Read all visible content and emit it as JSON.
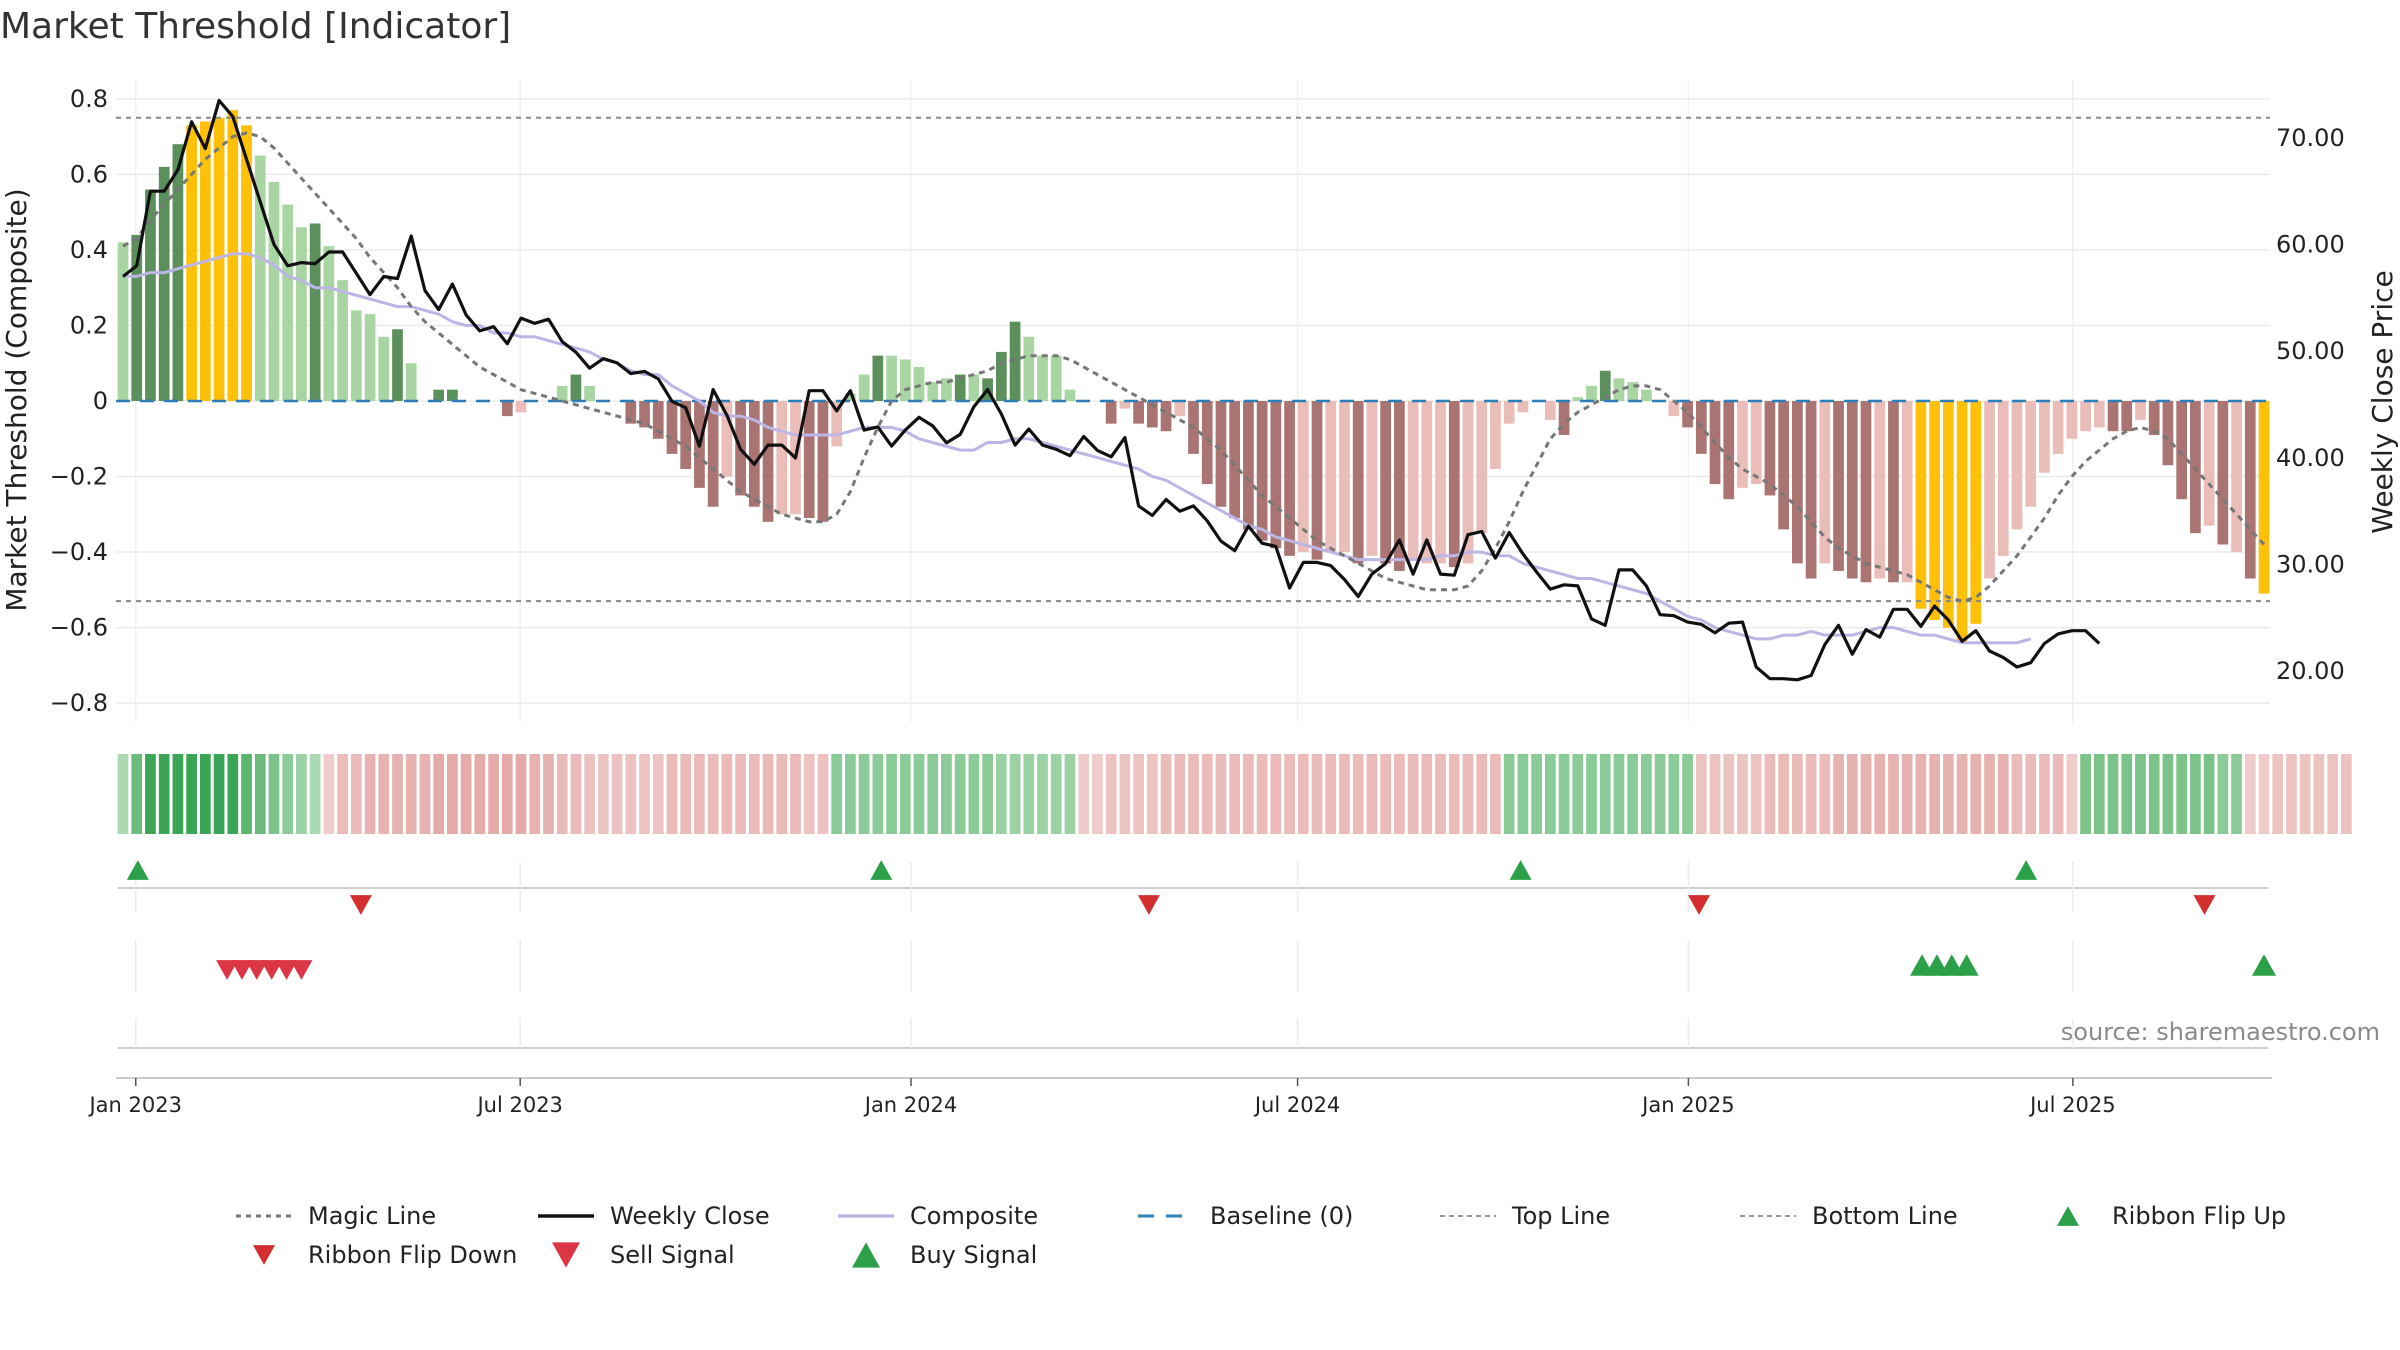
{
  "page": {
    "title": "Market Threshold [Indicator]"
  },
  "chart_data": {
    "type": "bar",
    "title": "Market Threshold [Indicator]",
    "source": "source: sharemaestro.com",
    "ylabel_left": "Market Threshold (Composite)",
    "ylabel_right": "Weekly Close Price",
    "x_start": "2022-12-26",
    "x_end": "2025-09-29",
    "x_tick_labels": [
      "Jan 2023",
      "Jul 2023",
      "Jan 2024",
      "Jul 2024",
      "Jan 2025",
      "Jul 2025"
    ],
    "x_tick_dates": [
      "2023-01-01",
      "2023-07-01",
      "2024-01-01",
      "2024-07-01",
      "2025-01-01",
      "2025-07-01"
    ],
    "ylim_left": [
      -0.85,
      0.85
    ],
    "yticks_left": [
      0.8,
      0.6,
      0.4,
      0.2,
      0,
      -0.2,
      -0.4,
      -0.6,
      -0.8
    ],
    "ytick_labels_left": [
      "0.8",
      "0.6",
      "0.4",
      "0.2",
      "0",
      "−0.2",
      "−0.4",
      "−0.6",
      "−0.8"
    ],
    "ylim_right": [
      15.24,
      75.42
    ],
    "yticks_right": [
      70,
      60,
      50,
      40,
      30,
      20
    ],
    "ytick_labels_right": [
      "70.00",
      "60.00",
      "50.00",
      "40.00",
      "30.00",
      "20.00"
    ],
    "top_line": 0.75,
    "bottom_line": -0.53,
    "baseline": 0,
    "colors": {
      "strong_green": "#5b8f5b",
      "light_green": "#a8d5a2",
      "strong_red": "#a97472",
      "light_red": "#ebbdb9",
      "extreme": "#ffc107",
      "magic": "#777777",
      "close": "#111111",
      "composite": "#bdb5e6",
      "baseline": "#2c7fb8",
      "buy": "#2ca048",
      "sell": "#dc3545",
      "flip_down": "#d32f2f"
    },
    "series": [
      {
        "name": "Composite",
        "bar_values": [
          0.42,
          0.44,
          0.56,
          0.62,
          0.68,
          0.73,
          0.74,
          0.75,
          0.77,
          0.73,
          0.65,
          0.58,
          0.52,
          0.46,
          0.47,
          0.41,
          0.32,
          0.24,
          0.23,
          0.17,
          0.19,
          0.1,
          0.0,
          0.03,
          0.03,
          0.0,
          0.0,
          0.0,
          -0.04,
          -0.03,
          0.0,
          0.0,
          0.04,
          0.07,
          0.04,
          0.0,
          0.0,
          -0.06,
          -0.07,
          -0.1,
          -0.14,
          -0.18,
          -0.23,
          -0.28,
          -0.2,
          -0.25,
          -0.28,
          -0.32,
          -0.3,
          -0.3,
          -0.31,
          -0.32,
          -0.12,
          0.02,
          0.07,
          0.12,
          0.12,
          0.11,
          0.09,
          0.05,
          0.06,
          0.07,
          0.07,
          0.06,
          0.13,
          0.21,
          0.17,
          0.12,
          0.12,
          0.03,
          0.0,
          0.0,
          -0.06,
          -0.02,
          -0.06,
          -0.07,
          -0.08,
          -0.04,
          -0.14,
          -0.22,
          -0.28,
          -0.31,
          -0.34,
          -0.37,
          -0.39,
          -0.41,
          -0.4,
          -0.42,
          -0.4,
          -0.4,
          -0.43,
          -0.41,
          -0.43,
          -0.45,
          -0.42,
          -0.43,
          -0.43,
          -0.44,
          -0.43,
          -0.35,
          -0.18,
          -0.06,
          -0.03,
          0.0,
          -0.05,
          -0.09,
          0.01,
          0.04,
          0.08,
          0.06,
          0.05,
          0.03,
          0.0,
          -0.04,
          -0.07,
          -0.14,
          -0.22,
          -0.26,
          -0.23,
          -0.22,
          -0.25,
          -0.34,
          -0.43,
          -0.47,
          -0.43,
          -0.45,
          -0.47,
          -0.48,
          -0.47,
          -0.48,
          -0.48,
          -0.55,
          -0.58,
          -0.6,
          -0.64,
          -0.59,
          -0.47,
          -0.41,
          -0.34,
          -0.28,
          -0.19,
          -0.14,
          -0.1,
          -0.08,
          -0.07,
          -0.08,
          -0.08,
          -0.05,
          -0.09,
          -0.17,
          -0.26,
          -0.35,
          -0.33,
          -0.38,
          -0.4,
          -0.47,
          -0.51
        ],
        "bar_class": [
          "lg",
          "sg",
          "sg",
          "sg",
          "sg",
          "ex",
          "ex",
          "ex",
          "ex",
          "ex",
          "lg",
          "lg",
          "lg",
          "lg",
          "sg",
          "lg",
          "lg",
          "lg",
          "lg",
          "lg",
          "sg",
          "lg",
          "lg",
          "sg",
          "sg",
          "lg",
          "lg",
          "lg",
          "sr",
          "lr",
          "lr",
          "lr",
          "lg",
          "sg",
          "lg",
          "lg",
          "lg",
          "sr",
          "sr",
          "sr",
          "sr",
          "sr",
          "sr",
          "sr",
          "lr",
          "sr",
          "sr",
          "sr",
          "lr",
          "lr",
          "sr",
          "sr",
          "lr",
          "lg",
          "lg",
          "sg",
          "lg",
          "lg",
          "lg",
          "lg",
          "lg",
          "sg",
          "lg",
          "sg",
          "sg",
          "sg",
          "lg",
          "lg",
          "lg",
          "lg",
          "lg",
          "lg",
          "sr",
          "lr",
          "sr",
          "sr",
          "sr",
          "lr",
          "sr",
          "sr",
          "sr",
          "sr",
          "sr",
          "sr",
          "sr",
          "sr",
          "lr",
          "sr",
          "lr",
          "lr",
          "sr",
          "lr",
          "sr",
          "sr",
          "lr",
          "lr",
          "lr",
          "sr",
          "lr",
          "lr",
          "lr",
          "lr",
          "lr",
          "lr",
          "lr",
          "sr",
          "lg",
          "lg",
          "sg",
          "lg",
          "lg",
          "lg",
          "lr",
          "lr",
          "sr",
          "sr",
          "sr",
          "sr",
          "lr",
          "lr",
          "sr",
          "sr",
          "sr",
          "sr",
          "lr",
          "sr",
          "sr",
          "sr",
          "lr",
          "sr",
          "lr",
          "ex",
          "ex",
          "ex",
          "ex",
          "ex",
          "lr",
          "lr",
          "lr",
          "lr",
          "lr",
          "lr",
          "lr",
          "lr",
          "lr",
          "sr",
          "sr",
          "lr",
          "sr",
          "sr",
          "sr",
          "sr",
          "lr",
          "sr",
          "lr",
          "sr",
          "ex"
        ],
        "line_values": [
          0.33,
          0.33,
          0.34,
          0.34,
          0.35,
          0.36,
          0.37,
          0.38,
          0.39,
          0.39,
          0.38,
          0.36,
          0.33,
          0.32,
          0.3,
          0.3,
          0.29,
          0.28,
          0.27,
          0.26,
          0.25,
          0.25,
          0.24,
          0.23,
          0.21,
          0.2,
          0.2,
          0.18,
          0.18,
          0.17,
          0.17,
          0.16,
          0.15,
          0.14,
          0.13,
          0.11,
          0.1,
          0.08,
          0.07,
          0.07,
          0.04,
          0.02,
          0.0,
          -0.03,
          -0.04,
          -0.04,
          -0.05,
          -0.07,
          -0.08,
          -0.09,
          -0.09,
          -0.09,
          -0.09,
          -0.08,
          -0.07,
          -0.07,
          -0.07,
          -0.08,
          -0.1,
          -0.11,
          -0.12,
          -0.13,
          -0.13,
          -0.11,
          -0.11,
          -0.1,
          -0.1,
          -0.11,
          -0.12,
          -0.13,
          -0.14,
          -0.15,
          -0.16,
          -0.17,
          -0.18,
          -0.2,
          -0.21,
          -0.23,
          -0.25,
          -0.27,
          -0.29,
          -0.31,
          -0.33,
          -0.34,
          -0.36,
          -0.37,
          -0.38,
          -0.39,
          -0.4,
          -0.41,
          -0.42,
          -0.42,
          -0.42,
          -0.42,
          -0.42,
          -0.42,
          -0.41,
          -0.41,
          -0.4,
          -0.4,
          -0.41,
          -0.41,
          -0.43,
          -0.44,
          -0.45,
          -0.46,
          -0.47,
          -0.47,
          -0.48,
          -0.49,
          -0.5,
          -0.51,
          -0.53,
          -0.55,
          -0.57,
          -0.58,
          -0.6,
          -0.61,
          -0.62,
          -0.63,
          -0.63,
          -0.62,
          -0.62,
          -0.61,
          -0.62,
          -0.62,
          -0.62,
          -0.61,
          -0.6,
          -0.6,
          -0.61,
          -0.62,
          -0.62,
          -0.63,
          -0.64,
          -0.64,
          -0.64,
          -0.64,
          -0.64,
          -0.63
        ]
      },
      {
        "name": "Magic Line",
        "values": [
          0.41,
          0.43,
          0.48,
          0.52,
          0.56,
          0.6,
          0.64,
          0.67,
          0.7,
          0.71,
          0.7,
          0.67,
          0.63,
          0.59,
          0.55,
          0.51,
          0.47,
          0.43,
          0.38,
          0.34,
          0.3,
          0.25,
          0.21,
          0.18,
          0.15,
          0.12,
          0.09,
          0.07,
          0.05,
          0.03,
          0.02,
          0.01,
          0.0,
          -0.01,
          -0.02,
          -0.03,
          -0.04,
          -0.05,
          -0.06,
          -0.08,
          -0.1,
          -0.12,
          -0.15,
          -0.18,
          -0.21,
          -0.24,
          -0.26,
          -0.28,
          -0.3,
          -0.31,
          -0.32,
          -0.32,
          -0.3,
          -0.24,
          -0.15,
          -0.07,
          0.0,
          0.03,
          0.04,
          0.05,
          0.05,
          0.06,
          0.07,
          0.08,
          0.1,
          0.11,
          0.12,
          0.12,
          0.12,
          0.11,
          0.09,
          0.07,
          0.05,
          0.03,
          0.01,
          -0.01,
          -0.03,
          -0.05,
          -0.07,
          -0.1,
          -0.13,
          -0.17,
          -0.21,
          -0.25,
          -0.28,
          -0.31,
          -0.34,
          -0.37,
          -0.39,
          -0.41,
          -0.43,
          -0.45,
          -0.47,
          -0.48,
          -0.49,
          -0.5,
          -0.5,
          -0.5,
          -0.49,
          -0.45,
          -0.39,
          -0.32,
          -0.24,
          -0.17,
          -0.1,
          -0.06,
          -0.03,
          -0.01,
          0.01,
          0.03,
          0.04,
          0.04,
          0.03,
          0.0,
          -0.03,
          -0.07,
          -0.11,
          -0.15,
          -0.18,
          -0.2,
          -0.22,
          -0.25,
          -0.28,
          -0.32,
          -0.36,
          -0.39,
          -0.41,
          -0.43,
          -0.44,
          -0.45,
          -0.46,
          -0.48,
          -0.5,
          -0.52,
          -0.53,
          -0.52,
          -0.49,
          -0.45,
          -0.41,
          -0.36,
          -0.31,
          -0.25,
          -0.2,
          -0.16,
          -0.13,
          -0.1,
          -0.08,
          -0.07,
          -0.08,
          -0.1,
          -0.14,
          -0.18,
          -0.22,
          -0.26,
          -0.3,
          -0.34,
          -0.38
        ]
      },
      {
        "name": "Weekly Close",
        "values": [
          57.0,
          58.0,
          65.0,
          65.0,
          67.0,
          71.5,
          69.0,
          73.5,
          72.0,
          68.0,
          64.0,
          60.0,
          58.0,
          58.3,
          58.2,
          59.3,
          59.3,
          57.3,
          55.3,
          57.0,
          56.8,
          60.8,
          55.7,
          53.9,
          56.3,
          53.4,
          51.9,
          52.3,
          50.7,
          53.1,
          52.6,
          53.0,
          50.9,
          49.9,
          48.4,
          49.3,
          48.9,
          47.9,
          48.1,
          47.4,
          45.3,
          44.7,
          41.1,
          46.4,
          44.0,
          40.8,
          39.4,
          41.2,
          41.2,
          40.0,
          46.3,
          46.3,
          44.4,
          46.3,
          42.6,
          42.9,
          41.1,
          42.6,
          43.8,
          43.0,
          41.4,
          42.2,
          44.8,
          46.4,
          44.1,
          41.2,
          42.7,
          41.2,
          40.8,
          40.2,
          42.0,
          40.7,
          40.1,
          41.9,
          35.5,
          34.6,
          36.1,
          35.0,
          35.5,
          34.1,
          32.2,
          31.3,
          33.6,
          32.0,
          31.7,
          27.8,
          30.2,
          30.2,
          29.9,
          28.6,
          27.0,
          29.1,
          30.1,
          32.3,
          29.1,
          32.3,
          29.1,
          29.0,
          32.8,
          33.1,
          30.6,
          33.0,
          31.0,
          29.3,
          27.7,
          28.1,
          28.0,
          24.9,
          24.3,
          29.5,
          29.5,
          28.0,
          25.3,
          25.2,
          24.6,
          24.4,
          23.6,
          24.5,
          24.6,
          20.4,
          19.3,
          19.3,
          19.2,
          19.6,
          22.5,
          24.3,
          21.6,
          23.9,
          23.2,
          25.8,
          25.8,
          24.2,
          26.1,
          24.8,
          22.8,
          23.8,
          21.9,
          21.3,
          20.4,
          20.8,
          22.6,
          23.5,
          23.8,
          23.8,
          22.6
        ],
        "axis": "right"
      },
      {
        "name": "Baseline (0)",
        "values": [
          0
        ]
      },
      {
        "name": "Top Line",
        "values": [
          0.75
        ]
      },
      {
        "name": "Bottom Line",
        "values": [
          -0.53
        ]
      }
    ],
    "ribbon": {
      "values": [
        0.3,
        0.7,
        1.0,
        1.0,
        1.0,
        1.0,
        1.0,
        1.0,
        1.0,
        0.8,
        0.7,
        0.6,
        0.5,
        0.4,
        0.3,
        -0.2,
        -0.4,
        -0.4,
        -0.5,
        -0.5,
        -0.5,
        -0.5,
        -0.5,
        -0.6,
        -0.6,
        -0.6,
        -0.6,
        -0.6,
        -0.6,
        -0.6,
        -0.5,
        -0.5,
        -0.4,
        -0.4,
        -0.3,
        -0.3,
        -0.3,
        -0.3,
        -0.3,
        -0.3,
        -0.4,
        -0.4,
        -0.4,
        -0.4,
        -0.4,
        -0.4,
        -0.4,
        -0.4,
        -0.4,
        -0.4,
        -0.3,
        -0.3,
        0.5,
        0.5,
        0.5,
        0.5,
        0.5,
        0.5,
        0.5,
        0.5,
        0.5,
        0.5,
        0.5,
        0.5,
        0.4,
        0.4,
        0.4,
        0.4,
        0.4,
        0.4,
        -0.2,
        -0.2,
        -0.3,
        -0.3,
        -0.3,
        -0.3,
        -0.4,
        -0.4,
        -0.4,
        -0.4,
        -0.4,
        -0.4,
        -0.4,
        -0.4,
        -0.4,
        -0.4,
        -0.4,
        -0.4,
        -0.4,
        -0.4,
        -0.4,
        -0.4,
        -0.4,
        -0.4,
        -0.4,
        -0.4,
        -0.4,
        -0.4,
        -0.4,
        -0.4,
        -0.4,
        0.5,
        0.5,
        0.5,
        0.5,
        0.5,
        0.5,
        0.5,
        0.5,
        0.5,
        0.5,
        0.5,
        0.5,
        0.5,
        0.5,
        -0.3,
        -0.3,
        -0.3,
        -0.3,
        -0.3,
        -0.4,
        -0.4,
        -0.4,
        -0.4,
        -0.4,
        -0.5,
        -0.5,
        -0.5,
        -0.5,
        -0.5,
        -0.5,
        -0.5,
        -0.5,
        -0.5,
        -0.5,
        -0.5,
        -0.5,
        -0.5,
        -0.4,
        -0.4,
        -0.4,
        -0.4,
        -0.2,
        0.6,
        0.6,
        0.6,
        0.6,
        0.6,
        0.6,
        0.6,
        0.6,
        0.6,
        0.6,
        0.5,
        0.5,
        -0.2,
        -0.2,
        -0.3,
        -0.3,
        -0.3,
        -0.3,
        -0.3,
        -0.3
      ]
    },
    "markers": {
      "ribbon_flip_up": [
        "2023-01-02",
        "2023-12-18",
        "2024-10-14",
        "2025-06-09"
      ],
      "ribbon_flip_down": [
        "2023-04-17",
        "2024-04-22",
        "2025-01-06",
        "2025-09-01"
      ],
      "sell_signal": [
        "2023-02-13",
        "2023-02-20",
        "2023-02-27",
        "2023-03-06",
        "2023-03-13",
        "2023-03-20"
      ],
      "buy_signal": [
        "2025-04-21",
        "2025-04-28",
        "2025-05-05",
        "2025-05-12",
        "2025-09-29"
      ]
    },
    "legend": {
      "placement": "bottom",
      "items": [
        "Magic Line",
        "Weekly Close",
        "Composite",
        "Baseline (0)",
        "Top Line",
        "Bottom Line",
        "Ribbon Flip Up",
        "Ribbon Flip Down",
        "Sell Signal",
        "Buy Signal"
      ]
    },
    "grid": true
  }
}
